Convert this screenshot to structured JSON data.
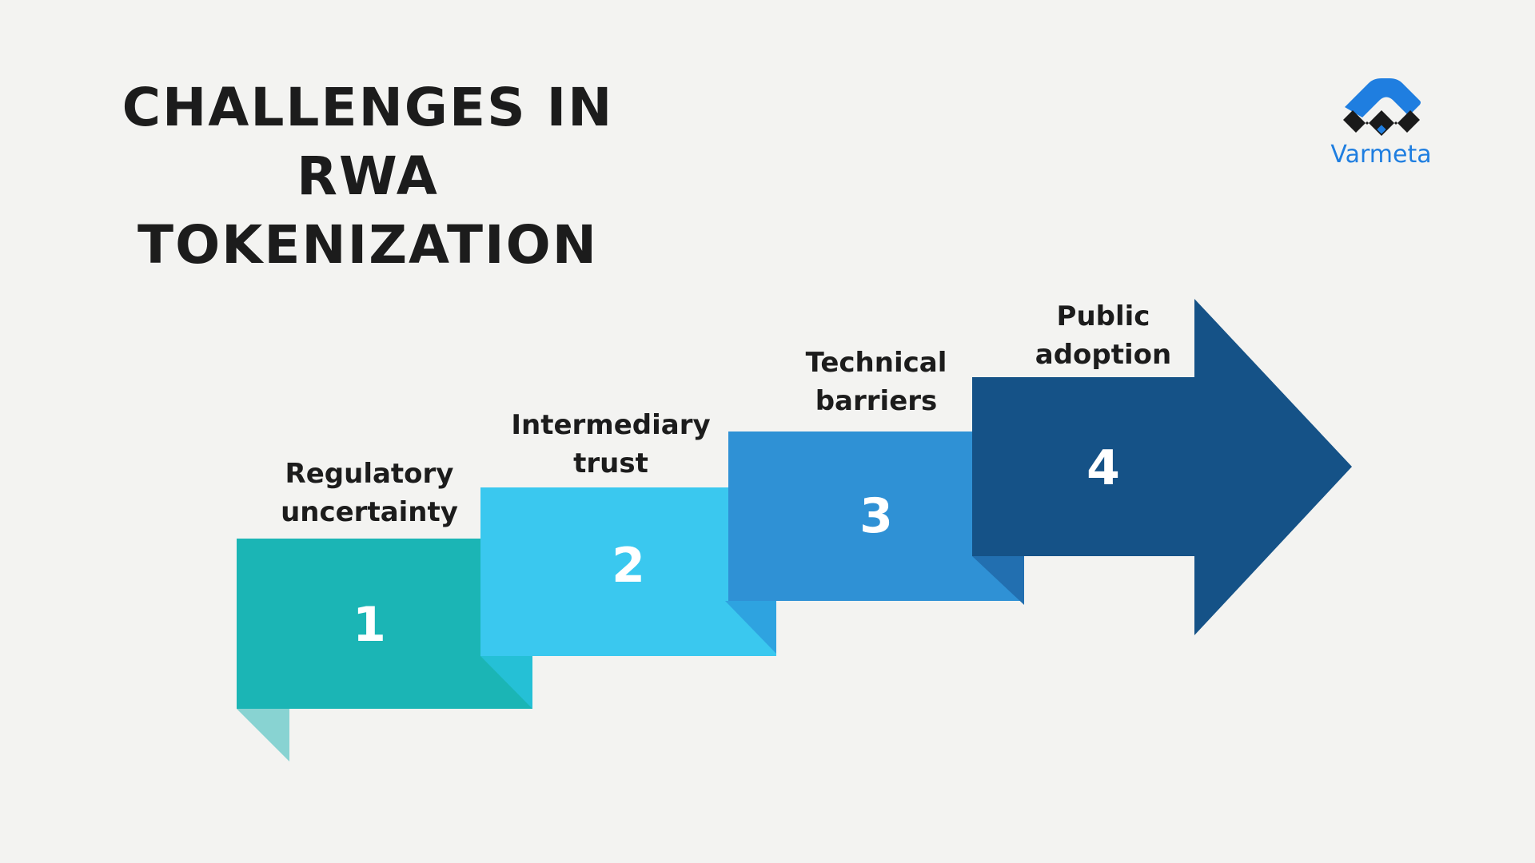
{
  "title": {
    "line1": "CHALLENGES IN RWA",
    "line2": "TOKENIZATION"
  },
  "logo": {
    "text": "Varmeta",
    "icon": "varmeta-logo-icon",
    "color": "#1f7ee0"
  },
  "steps": [
    {
      "number": "1",
      "label_line1": "Regulatory",
      "label_line2": "uncertainty",
      "color": "#1bb5b5"
    },
    {
      "number": "2",
      "label_line1": "Intermediary",
      "label_line2": "trust",
      "color": "#3ac8ef"
    },
    {
      "number": "3",
      "label_line1": "Technical",
      "label_line2": "barriers",
      "color": "#2f91d5"
    },
    {
      "number": "4",
      "label_line1": "Public",
      "label_line2": "adoption",
      "color": "#155287"
    }
  ]
}
